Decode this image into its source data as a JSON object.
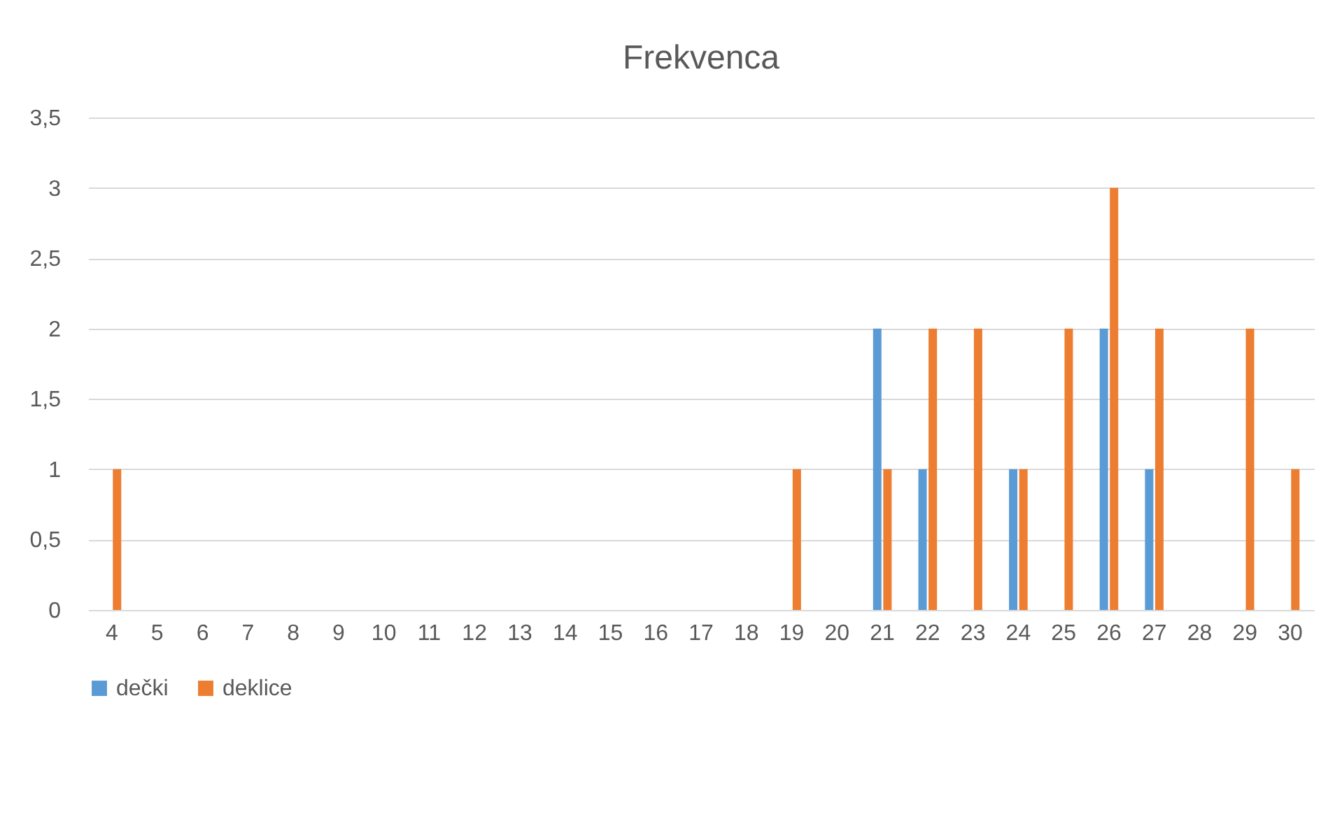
{
  "chart_data": {
    "type": "bar",
    "title": "Frekvenca",
    "categories": [
      "4",
      "5",
      "6",
      "7",
      "8",
      "9",
      "10",
      "11",
      "12",
      "13",
      "14",
      "15",
      "16",
      "17",
      "18",
      "19",
      "20",
      "21",
      "22",
      "23",
      "24",
      "25",
      "26",
      "27",
      "28",
      "29",
      "30"
    ],
    "series": [
      {
        "name": "dečki",
        "color": "#5b9bd5",
        "values": [
          0,
          0,
          0,
          0,
          0,
          0,
          0,
          0,
          0,
          0,
          0,
          0,
          0,
          0,
          0,
          0,
          0,
          2,
          1,
          0,
          1,
          0,
          2,
          1,
          0,
          0,
          0
        ]
      },
      {
        "name": "deklice",
        "color": "#ed7d31",
        "values": [
          1,
          0,
          0,
          0,
          0,
          0,
          0,
          0,
          0,
          0,
          0,
          0,
          0,
          0,
          0,
          1,
          0,
          1,
          2,
          2,
          1,
          2,
          3,
          2,
          0,
          2,
          1
        ]
      }
    ],
    "ylim": [
      0,
      3.5
    ],
    "yticks": [
      0,
      {
        "value": 0.5,
        "label": "0,5"
      },
      1,
      {
        "value": 1.5,
        "label": "1,5"
      },
      2,
      {
        "value": 2.5,
        "label": "2,5"
      },
      3,
      {
        "value": 3.5,
        "label": "3,5"
      }
    ],
    "grid": "y",
    "legend": "bottom"
  }
}
